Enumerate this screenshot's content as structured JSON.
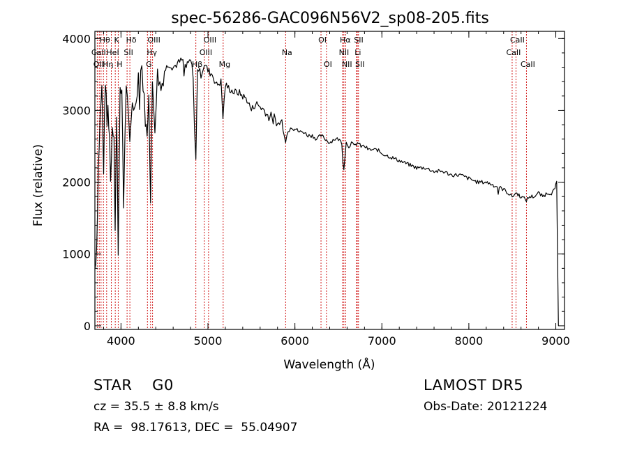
{
  "chart_data": {
    "type": "line",
    "title": "spec-56286-GAC096N56V2_sp08-205.fits",
    "xlabel": "Wavelength (Å)",
    "ylabel": "Flux (relative)",
    "xlim": [
      3700,
      9100
    ],
    "ylim": [
      -50,
      4100
    ],
    "xticks": [
      4000,
      5000,
      6000,
      7000,
      8000,
      9000
    ],
    "xtick_labels": [
      "4000",
      "5000",
      "6000",
      "7000",
      "8000",
      "9000"
    ],
    "yticks": [
      0,
      1000,
      2000,
      3000,
      4000
    ],
    "ytick_labels": [
      "0",
      "1000",
      "2000",
      "3000",
      "4000"
    ],
    "grid": false,
    "line_color": "#000000",
    "marker_color": "#cc0000",
    "series": [
      {
        "x": [
          3700,
          3720,
          3740,
          3760,
          3780,
          3800,
          3820,
          3840,
          3860,
          3880,
          3900,
          3920,
          3933,
          3950,
          3968,
          3990,
          4010,
          4030,
          4060,
          4101,
          4130,
          4160,
          4200,
          4240,
          4280,
          4300,
          4320,
          4340,
          4361,
          4390,
          4420,
          4460,
          4500,
          4550,
          4600,
          4650,
          4700,
          4750,
          4800,
          4830,
          4861,
          4880,
          4920,
          4960,
          5000,
          5050,
          5100,
          5150,
          5172,
          5200,
          5250,
          5300,
          5350,
          5400,
          5450,
          5500,
          5550,
          5600,
          5650,
          5700,
          5750,
          5800,
          5850,
          5893,
          5950,
          6000,
          6050,
          6100,
          6150,
          6200,
          6250,
          6300,
          6350,
          6400,
          6450,
          6500,
          6540,
          6563,
          6590,
          6620,
          6650,
          6680,
          6720,
          6760,
          6800,
          6850,
          6900,
          6950,
          7000,
          7100,
          7200,
          7300,
          7400,
          7500,
          7600,
          7700,
          7800,
          7900,
          8000,
          8100,
          8200,
          8300,
          8400,
          8450,
          8498,
          8542,
          8600,
          8662,
          8700,
          8750,
          8800,
          8850,
          8900,
          8950,
          8990,
          9010,
          9030
        ],
        "y": [
          800,
          1100,
          2200,
          2900,
          3300,
          2200,
          3450,
          2800,
          3250,
          2000,
          2800,
          2700,
          1300,
          3000,
          1100,
          3200,
          3300,
          1700,
          3400,
          2500,
          3150,
          3000,
          3500,
          3600,
          2900,
          2600,
          3300,
          1700,
          3400,
          2800,
          3500,
          3300,
          3550,
          3650,
          3600,
          3650,
          3700,
          3600,
          3700,
          3500,
          2300,
          3600,
          3500,
          3650,
          3550,
          3500,
          3350,
          3400,
          2900,
          3350,
          3300,
          3250,
          3250,
          3200,
          3150,
          3000,
          3100,
          3050,
          3000,
          2900,
          2950,
          2800,
          2850,
          2600,
          2800,
          2750,
          2700,
          2700,
          2650,
          2650,
          2600,
          2650,
          2600,
          2550,
          2600,
          2600,
          2550,
          2200,
          2550,
          2500,
          2550,
          2500,
          2550,
          2500,
          2500,
          2450,
          2450,
          2450,
          2400,
          2350,
          2300,
          2250,
          2200,
          2200,
          2150,
          2150,
          2100,
          2100,
          2050,
          2000,
          2000,
          1950,
          1900,
          1850,
          1800,
          1850,
          1800,
          1750,
          1800,
          1800,
          1850,
          1800,
          1850,
          1850,
          1900,
          2000,
          0
        ]
      }
    ],
    "line_markers": [
      {
        "label": "Hθ",
        "wave": 3798,
        "row": 0
      },
      {
        "label": "K",
        "wave": 3934,
        "row": 0
      },
      {
        "label": "Hδ",
        "wave": 4102,
        "row": 0
      },
      {
        "label": "OIII",
        "wave": 4363,
        "row": 0
      },
      {
        "label": "OIII",
        "wave": 5007,
        "row": 0
      },
      {
        "label": "OI",
        "wave": 6300,
        "row": 0
      },
      {
        "label": "Hα",
        "wave": 6563,
        "row": 0
      },
      {
        "label": "SII",
        "wave": 6717,
        "row": 0
      },
      {
        "label": "CaII",
        "wave": 8542,
        "row": 0
      },
      {
        "label": "CaII",
        "wave": 3727,
        "row": 1
      },
      {
        "label": "HeI",
        "wave": 3889,
        "row": 1
      },
      {
        "label": "SII",
        "wave": 4070,
        "row": 1
      },
      {
        "label": "Hγ",
        "wave": 4340,
        "row": 1
      },
      {
        "label": "OIII",
        "wave": 4959,
        "row": 1
      },
      {
        "label": "Na",
        "wave": 5893,
        "row": 1
      },
      {
        "label": "NII",
        "wave": 6548,
        "row": 1
      },
      {
        "label": "Li",
        "wave": 6708,
        "row": 1
      },
      {
        "label": "CaII",
        "wave": 8498,
        "row": 1
      },
      {
        "label": "OII",
        "wave": 3727,
        "row": 2
      },
      {
        "label": "Hη",
        "wave": 3835,
        "row": 2
      },
      {
        "label": "H",
        "wave": 3968,
        "row": 2
      },
      {
        "label": "G",
        "wave": 4304,
        "row": 2
      },
      {
        "label": "Hβ",
        "wave": 4861,
        "row": 2
      },
      {
        "label": "Mg",
        "wave": 5175,
        "row": 2
      },
      {
        "label": "OI",
        "wave": 6363,
        "row": 2
      },
      {
        "label": "NII",
        "wave": 6583,
        "row": 2
      },
      {
        "label": "SII",
        "wave": 6731,
        "row": 2
      },
      {
        "label": "CaII",
        "wave": 8662,
        "row": 2
      }
    ],
    "line_marker_extra_waves": [
      3750,
      3771,
      3889
    ]
  },
  "footer": {
    "class_line": "STAR    G0",
    "cz_line": "cz = 35.5 ± 8.8 km/s",
    "radec_line": "RA =  98.17613, DEC =  55.04907",
    "survey": "LAMOST DR5",
    "obs_date": "Obs-Date: 20121224"
  }
}
